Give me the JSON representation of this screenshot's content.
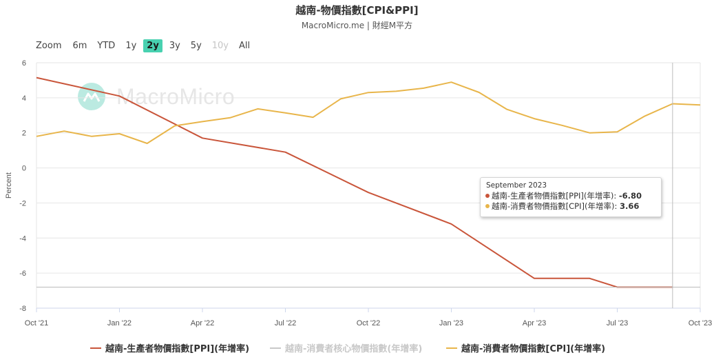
{
  "header": {
    "title": "越南-物價指數[CPI&PPI]",
    "subtitle": "MacroMicro.me | 財經M平方"
  },
  "range_selector": {
    "zoom_label": "Zoom",
    "buttons": [
      {
        "label": "6m",
        "state": "normal"
      },
      {
        "label": "YTD",
        "state": "normal"
      },
      {
        "label": "1y",
        "state": "normal"
      },
      {
        "label": "2y",
        "state": "active"
      },
      {
        "label": "3y",
        "state": "normal"
      },
      {
        "label": "5y",
        "state": "normal"
      },
      {
        "label": "10y",
        "state": "disabled"
      },
      {
        "label": "All",
        "state": "normal"
      }
    ]
  },
  "watermark": {
    "text": "MacroMicro",
    "icon": "macromicro-logo-icon"
  },
  "tooltip": {
    "date": "September 2023",
    "rows": [
      {
        "label": "越南-生產者物價指數[PPI](年增率):",
        "value": "-6.80",
        "color": "#c9553a"
      },
      {
        "label": "越南-消費者物價指數[CPI](年增率):",
        "value": "3.66",
        "color": "#e8b54a"
      }
    ]
  },
  "chart_data": {
    "type": "line",
    "title": "越南-物價指數[CPI&PPI]",
    "xlabel": "",
    "ylabel": "Percent",
    "ylim": [
      -8,
      6
    ],
    "yticks": [
      -8,
      -6,
      -4,
      -2,
      0,
      2,
      4,
      6
    ],
    "x_ticks": [
      "Oct '21",
      "Jan '22",
      "Apr '22",
      "Jul '22",
      "Oct '22",
      "Jan '23",
      "Apr '23",
      "Jul '23",
      "Oct '23"
    ],
    "grid": true,
    "legend_position": "bottom",
    "series": [
      {
        "name": "越南-生產者物價指數[PPI](年增率)",
        "color": "#c9553a",
        "visible": true,
        "points": [
          [
            "2021-10",
            5.15
          ],
          [
            "2022-01",
            4.1
          ],
          [
            "2022-04",
            1.7
          ],
          [
            "2022-07",
            0.9
          ],
          [
            "2022-10",
            -1.4
          ],
          [
            "2023-01",
            -3.2
          ],
          [
            "2023-04",
            -6.3
          ],
          [
            "2023-06",
            -6.3
          ],
          [
            "2023-07",
            -6.8
          ],
          [
            "2023-09",
            -6.8
          ]
        ]
      },
      {
        "name": "越南-消費者核心物價指數(年增率)",
        "color": "#c8c8c8",
        "visible": false,
        "points": []
      },
      {
        "name": "越南-消費者物價指數[CPI](年增率)",
        "color": "#e8b54a",
        "visible": true,
        "points": [
          [
            "2021-10",
            1.8
          ],
          [
            "2021-11",
            2.1
          ],
          [
            "2021-12",
            1.8
          ],
          [
            "2022-01",
            1.95
          ],
          [
            "2022-02",
            1.4
          ],
          [
            "2022-03",
            2.4
          ],
          [
            "2022-04",
            2.64
          ],
          [
            "2022-05",
            2.86
          ],
          [
            "2022-06",
            3.37
          ],
          [
            "2022-07",
            3.14
          ],
          [
            "2022-08",
            2.89
          ],
          [
            "2022-09",
            3.94
          ],
          [
            "2022-10",
            4.3
          ],
          [
            "2022-11",
            4.37
          ],
          [
            "2022-12",
            4.55
          ],
          [
            "2023-01",
            4.89
          ],
          [
            "2023-02",
            4.31
          ],
          [
            "2023-03",
            3.35
          ],
          [
            "2023-04",
            2.81
          ],
          [
            "2023-05",
            2.43
          ],
          [
            "2023-06",
            2.0
          ],
          [
            "2023-07",
            2.06
          ],
          [
            "2023-08",
            2.96
          ],
          [
            "2023-09",
            3.66
          ],
          [
            "2023-10",
            3.59
          ]
        ]
      }
    ],
    "highlight_date": "2023-09",
    "highlight_value": -6.8
  }
}
